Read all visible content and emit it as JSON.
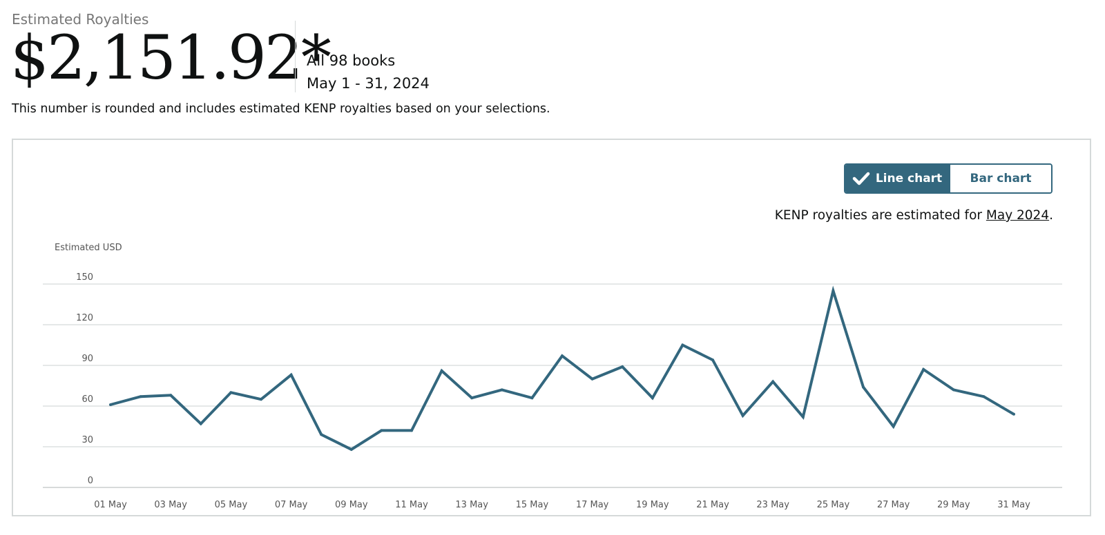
{
  "header": {
    "label": "Estimated Royalties",
    "amount": "$2,151.92*",
    "books": "All 98 books",
    "date_range": "May 1 - 31, 2024",
    "note": "This number is rounded and includes estimated KENP royalties based on your selections."
  },
  "toggle": {
    "line_label": "Line chart",
    "bar_label": "Bar chart",
    "active": "line"
  },
  "kenp_note": {
    "prefix": "KENP royalties are estimated for ",
    "link": "May 2024",
    "suffix": "."
  },
  "colors": {
    "accent": "#33677e",
    "grid": "#d5d9d9"
  },
  "chart_data": {
    "type": "line",
    "ylabel": "Estimated USD",
    "ylim": [
      0,
      150
    ],
    "yticks": [
      0,
      30,
      60,
      90,
      120,
      150
    ],
    "x": [
      "01 May",
      "02 May",
      "03 May",
      "04 May",
      "05 May",
      "06 May",
      "07 May",
      "08 May",
      "09 May",
      "10 May",
      "11 May",
      "12 May",
      "13 May",
      "14 May",
      "15 May",
      "16 May",
      "17 May",
      "18 May",
      "19 May",
      "20 May",
      "21 May",
      "22 May",
      "23 May",
      "24 May",
      "25 May",
      "26 May",
      "27 May",
      "28 May",
      "29 May",
      "30 May",
      "31 May"
    ],
    "xtick_labels": [
      "01 May",
      "03 May",
      "05 May",
      "07 May",
      "09 May",
      "11 May",
      "13 May",
      "15 May",
      "17 May",
      "19 May",
      "21 May",
      "23 May",
      "25 May",
      "27 May",
      "29 May",
      "31 May"
    ],
    "series": [
      {
        "values": [
          61,
          67,
          68,
          47,
          70,
          65,
          83,
          39,
          28,
          42,
          42,
          86,
          66,
          72,
          66,
          97,
          80,
          89,
          66,
          105,
          94,
          53,
          78,
          52,
          145,
          74,
          45,
          87,
          72,
          67,
          54
        ]
      }
    ],
    "grid": true,
    "legend": "none"
  }
}
